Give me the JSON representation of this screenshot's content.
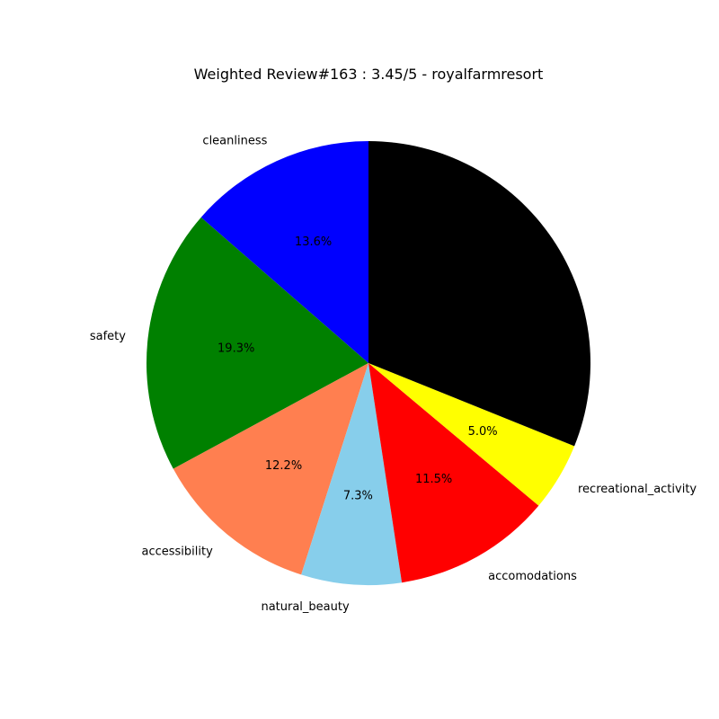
{
  "chart_data": {
    "type": "pie",
    "title": "Weighted Review#163 : 3.45/5 - royalfarmresort",
    "slices": [
      {
        "label": "cleanliness",
        "percent": 13.6,
        "pct_label": "13.6%",
        "color": "#0000ff"
      },
      {
        "label": "safety",
        "percent": 19.3,
        "pct_label": "19.3%",
        "color": "#008000"
      },
      {
        "label": "accessibility",
        "percent": 12.2,
        "pct_label": "12.2%",
        "color": "#ff7f50"
      },
      {
        "label": "natural_beauty",
        "percent": 7.3,
        "pct_label": "7.3%",
        "color": "#87ceeb"
      },
      {
        "label": "accomodations",
        "percent": 11.5,
        "pct_label": "11.5%",
        "color": "#ff0000"
      },
      {
        "label": "recreational_activity",
        "percent": 5.0,
        "pct_label": "5.0%",
        "color": "#ffff00"
      },
      {
        "label": "",
        "percent": 31.1,
        "pct_label": "",
        "color": "#000000"
      }
    ],
    "start_angle_deg": 90,
    "direction": "counterclockwise",
    "legend": "none"
  }
}
